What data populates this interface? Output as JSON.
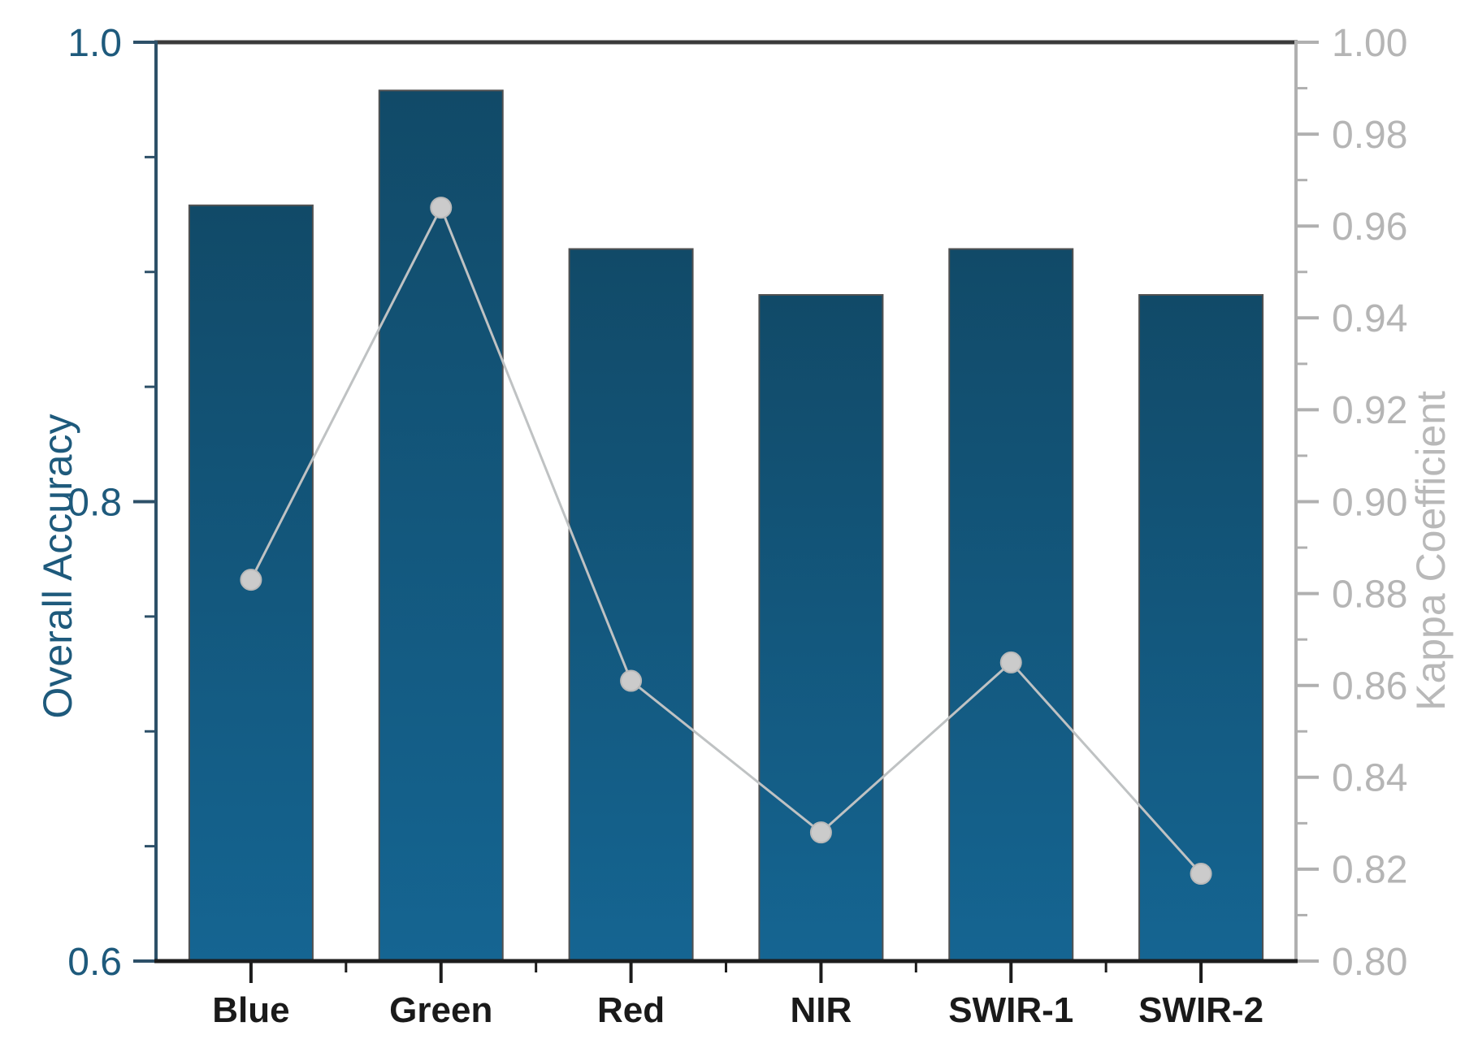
{
  "chart_data": {
    "type": "bar",
    "combo": [
      "bar",
      "line"
    ],
    "categories": [
      "Blue",
      "Green",
      "Red",
      "NIR",
      "SWIR-1",
      "SWIR-2"
    ],
    "series": [
      {
        "name": "Overall Accuracy",
        "type": "bar",
        "axis": "left",
        "values": [
          0.929,
          0.979,
          0.91,
          0.89,
          0.91,
          0.89
        ]
      },
      {
        "name": "Kappa Coefficient",
        "type": "line",
        "axis": "right",
        "values": [
          0.883,
          0.964,
          0.861,
          0.828,
          0.865,
          0.819
        ]
      }
    ],
    "left_axis": {
      "label": "Overall Accuracy",
      "min": 0.6,
      "max": 1.0,
      "major_ticks": [
        1.0,
        0.8,
        0.6
      ],
      "tick_labels": [
        "1.0",
        "0.8",
        "0.6"
      ],
      "minor_ticks": [
        0.95,
        0.9,
        0.85,
        0.75,
        0.7,
        0.65
      ]
    },
    "right_axis": {
      "label": "Kappa Coefficient",
      "min": 0.8,
      "max": 1.0,
      "major_ticks": [
        1.0,
        0.98,
        0.96,
        0.94,
        0.92,
        0.9,
        0.88,
        0.86,
        0.84,
        0.82,
        0.8
      ],
      "tick_labels": [
        "1.00",
        "0.98",
        "0.96",
        "0.94",
        "0.92",
        "0.90",
        "0.88",
        "0.86",
        "0.84",
        "0.82",
        "0.80"
      ],
      "minor_ticks": [
        0.99,
        0.97,
        0.95,
        0.93,
        0.91,
        0.89,
        0.87,
        0.85,
        0.83,
        0.81
      ]
    },
    "grid": false,
    "legend": false,
    "colors": {
      "bar_gradient_top": "#114a68",
      "bar_gradient_bottom": "#156592",
      "bar_stroke": "#515151",
      "line": "#bfc2c3",
      "marker_fill": "#cbcbcb",
      "marker_stroke": "#b9b9b9",
      "left_axis_line": "#2d5068",
      "left_axis_text": "#1e5a7c",
      "top_axis_line": "#3b3b3b",
      "bottom_axis_line": "#1c1c1c",
      "x_axis_text": "#1a1a1a",
      "right_axis_line": "#b0b0b0",
      "right_axis_text": "#b5b5b5",
      "right_title_text": "#b9b9b9"
    }
  }
}
